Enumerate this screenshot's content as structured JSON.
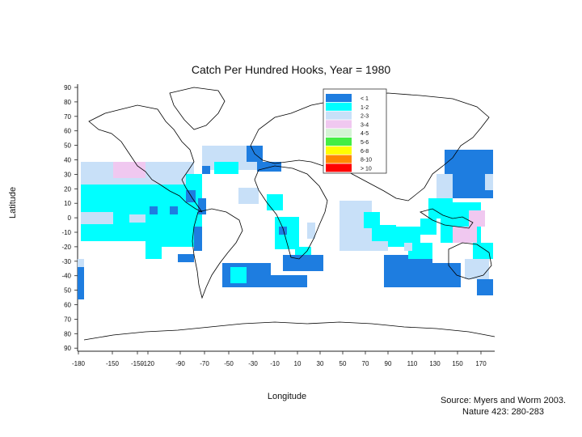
{
  "title": "Catch Per Hundred Hooks, Year = 1980",
  "xlabel": "Longitude",
  "ylabel": "Latitude",
  "source_line1": "Source: Myers and Worm 2003.",
  "source_line2": "Nature 423: 280-283",
  "y_ticks": [
    "90",
    "80",
    "70",
    "60",
    "50",
    "40",
    "30",
    "20",
    "10",
    "0",
    "-10",
    "-20",
    "-30",
    "-40",
    "50",
    "60",
    "70",
    "80",
    "90"
  ],
  "x_ticks": [
    "-180",
    "-150",
    "-150",
    "-120",
    "-90",
    "-70",
    "-50",
    "-30",
    "-10",
    "10",
    "30",
    "50",
    "70",
    "90",
    "110",
    "130",
    "150",
    "170"
  ],
  "legend": [
    {
      "label": "< 1",
      "color": "#1e7de0"
    },
    {
      "label": "1-2",
      "color": "#00ffff"
    },
    {
      "label": "2-3",
      "color": "#c8e0f8"
    },
    {
      "label": "3-4",
      "color": "#f0c8f0"
    },
    {
      "label": "4-5",
      "color": "#d4f4d4"
    },
    {
      "label": "5-6",
      "color": "#44ee44"
    },
    {
      "label": "6-8",
      "color": "#ffff00"
    },
    {
      "label": "8-10",
      "color": "#ff8800"
    },
    {
      "label": "> 10",
      "color": "#ff0000"
    }
  ],
  "colors": {
    "lt1": "#1e7de0",
    "c12": "#00ffff",
    "c23": "#c8e0f8",
    "c34": "#f0c8f0",
    "land": "#000000"
  }
}
